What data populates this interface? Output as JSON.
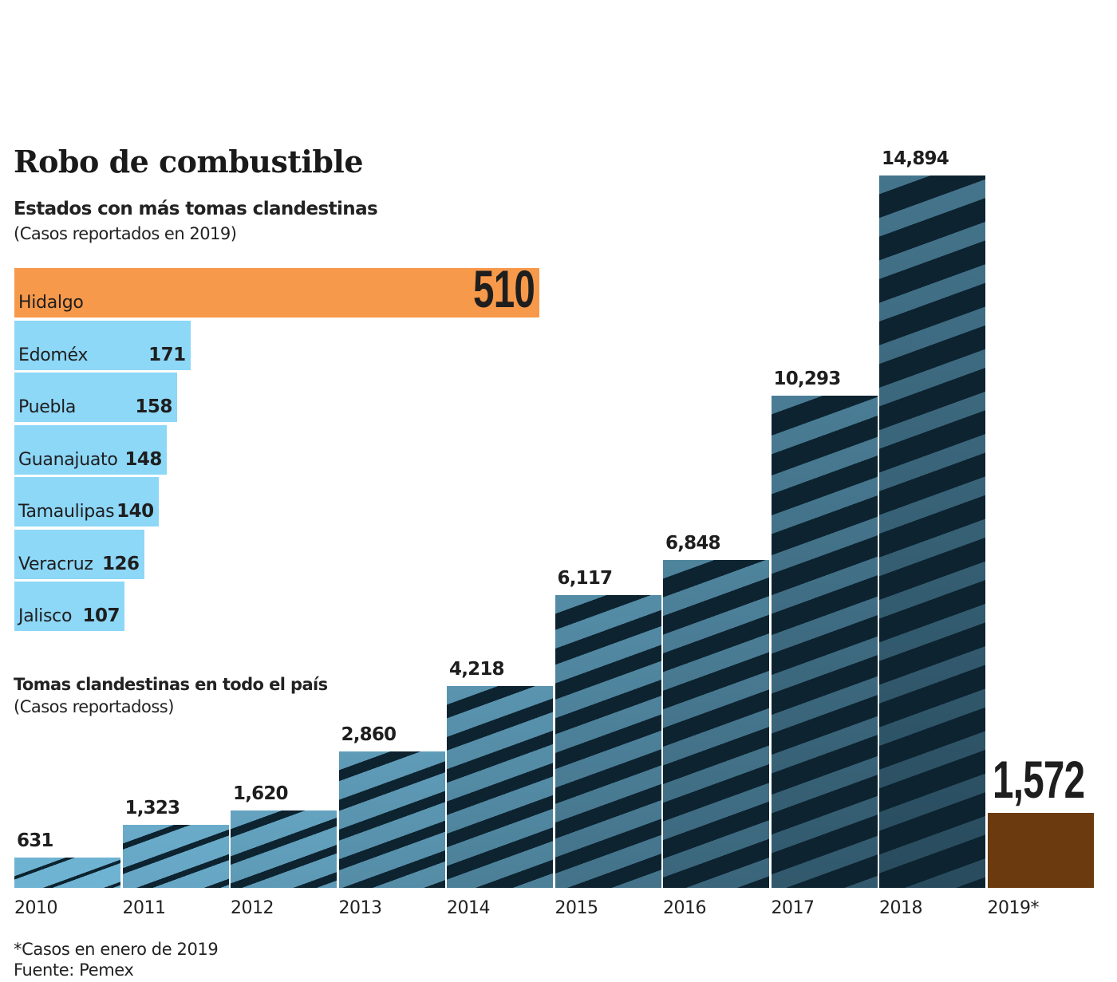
{
  "title": "Robo de combustible",
  "colors": {
    "highlight_state": "#F7994A",
    "state_bar": "#8DD7F7",
    "photo_light": "#6FB3D2",
    "photo_dark": "#0D2330",
    "highlight_year": "#6B3A0E",
    "text": "#1E1E1E"
  },
  "footnotes": {
    "note": "*Casos en enero de 2019",
    "source": "Fuente: Pemex"
  },
  "chart_data": [
    {
      "type": "bar",
      "orientation": "horizontal",
      "title": "Estados con más tomas clandestinas",
      "subtitle": "(Casos reportados en 2019)",
      "categories": [
        "Hidalgo",
        "Edoméx",
        "Puebla",
        "Guanajuato",
        "Tamaulipas",
        "Veracruz",
        "Jalisco"
      ],
      "values": [
        510,
        171,
        158,
        148,
        140,
        126,
        107
      ],
      "value_labels": [
        "510",
        "171",
        "158",
        "148",
        "140",
        "126",
        "107"
      ],
      "highlight": "Hidalgo",
      "xlim": [
        0,
        510
      ],
      "grid": false
    },
    {
      "type": "bar",
      "orientation": "vertical",
      "title": "Tomas clandestinas en todo el país",
      "subtitle": "(Casos reportadoss)",
      "categories": [
        "2010",
        "2011",
        "2012",
        "2013",
        "2014",
        "2015",
        "2016",
        "2017",
        "2018",
        "2019*"
      ],
      "values": [
        631,
        1323,
        1620,
        2860,
        4218,
        6117,
        6848,
        10293,
        14894,
        1572
      ],
      "value_labels": [
        "631",
        "1,323",
        "1,620",
        "2,860",
        "4,218",
        "6,117",
        "6,848",
        "10,293",
        "14,894",
        "1,572"
      ],
      "highlight": "2019*",
      "ylim": [
        0,
        14894
      ],
      "grid": false
    }
  ]
}
